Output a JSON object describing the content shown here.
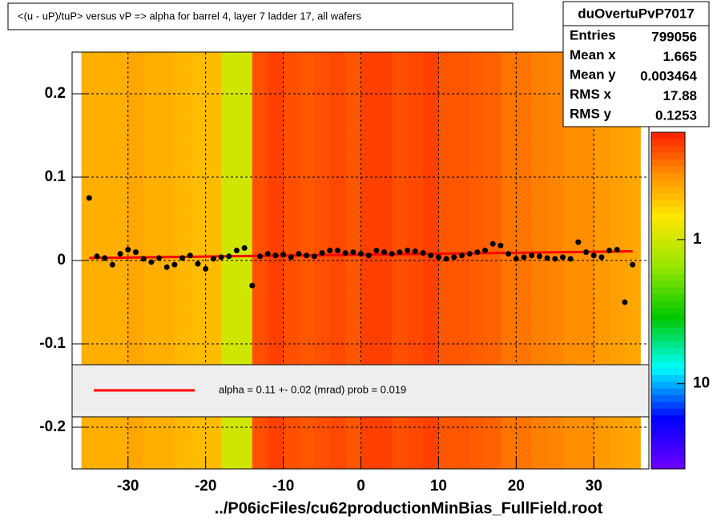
{
  "chart_data": {
    "type": "heatmap-profile",
    "title": "<(u - uP)/tuP> versus   vP => alpha for barrel 4, layer 7 ladder 17, all wafers",
    "x_label": "../P06icFiles/cu62productionMinBias_FullField.root",
    "xlim": [
      -37.2,
      37.1
    ],
    "ylim": [
      -0.25,
      0.25
    ],
    "xticks": [
      -30,
      -20,
      -10,
      0,
      10,
      20,
      30
    ],
    "yticks": [
      -0.2,
      -0.1,
      0,
      0.1,
      0.2
    ],
    "grid": true,
    "zlim": [
      39,
      0.18
    ],
    "zlog": true,
    "zticks": [
      10,
      1
    ],
    "heat": {
      "x": [
        -36,
        -34,
        -32,
        -30,
        -28,
        -26,
        -24,
        -22,
        -20,
        -18,
        -16,
        -14,
        -12,
        -10,
        -8,
        -6,
        -4,
        -2,
        0,
        2,
        4,
        6,
        8,
        10,
        12,
        14,
        16,
        18,
        20,
        22,
        24,
        26,
        28,
        30,
        32,
        34,
        36
      ],
      "z": [
        0.45,
        0.45,
        0.45,
        0.42,
        0.45,
        0.45,
        0.48,
        0.5,
        0.5,
        1.0,
        1.0,
        0.24,
        0.22,
        0.24,
        0.25,
        0.24,
        0.23,
        0.25,
        0.22,
        0.22,
        0.24,
        0.23,
        0.22,
        0.25,
        0.25,
        0.26,
        0.27,
        0.3,
        0.3,
        0.32,
        0.33,
        0.35,
        0.35,
        0.38,
        0.4,
        0.42
      ]
    },
    "profile": {
      "name": "profile",
      "color": "#000000",
      "x": [
        -35,
        -34,
        -33,
        -32,
        -31,
        -30,
        -29,
        -28,
        -27,
        -26,
        -25,
        -24,
        -23,
        -22,
        -21,
        -20,
        -19,
        -18,
        -17,
        -16,
        -15,
        -14,
        -13,
        -12,
        -11,
        -10,
        -9,
        -8,
        -7,
        -6,
        -5,
        -4,
        -3,
        -2,
        -1,
        0,
        1,
        2,
        3,
        4,
        5,
        6,
        7,
        8,
        9,
        10,
        11,
        12,
        13,
        14,
        15,
        16,
        17,
        18,
        19,
        20,
        21,
        22,
        23,
        24,
        25,
        26,
        27,
        28,
        29,
        30,
        31,
        32,
        33,
        34,
        35
      ],
      "y": [
        0.075,
        0.005,
        0.003,
        -0.005,
        0.008,
        0.013,
        0.01,
        0.002,
        -0.002,
        0.003,
        -0.008,
        -0.005,
        0.003,
        0.006,
        -0.004,
        -0.01,
        0.002,
        0.004,
        0.005,
        0.012,
        0.015,
        -0.03,
        0.005,
        0.008,
        0.006,
        0.007,
        0.004,
        0.008,
        0.006,
        0.005,
        0.009,
        0.012,
        0.012,
        0.009,
        0.01,
        0.008,
        0.006,
        0.012,
        0.01,
        0.008,
        0.01,
        0.012,
        0.011,
        0.009,
        0.006,
        0.004,
        0.002,
        0.004,
        0.006,
        0.008,
        0.01,
        0.012,
        0.02,
        0.018,
        0.008,
        0.002,
        0.004,
        0.006,
        0.005,
        0.003,
        0.002,
        0.004,
        0.002,
        0.022,
        0.01,
        0.006,
        0.004,
        0.012,
        0.013,
        -0.05,
        -0.005
      ]
    },
    "fit": {
      "x": [
        -35,
        35
      ],
      "y": [
        0.003,
        0.011
      ],
      "color": "#ff0000",
      "label": "alpha =    0.11 +-  0.02 (mrad) prob = 0.019"
    },
    "stats": {
      "title": "duOvertuPvP7017",
      "rows": [
        [
          "Entries",
          "799056"
        ],
        [
          "Mean x",
          "1.665"
        ],
        [
          "Mean y",
          "0.003464"
        ],
        [
          "RMS x",
          "17.88"
        ],
        [
          "RMS y",
          "0.1253"
        ]
      ]
    }
  }
}
